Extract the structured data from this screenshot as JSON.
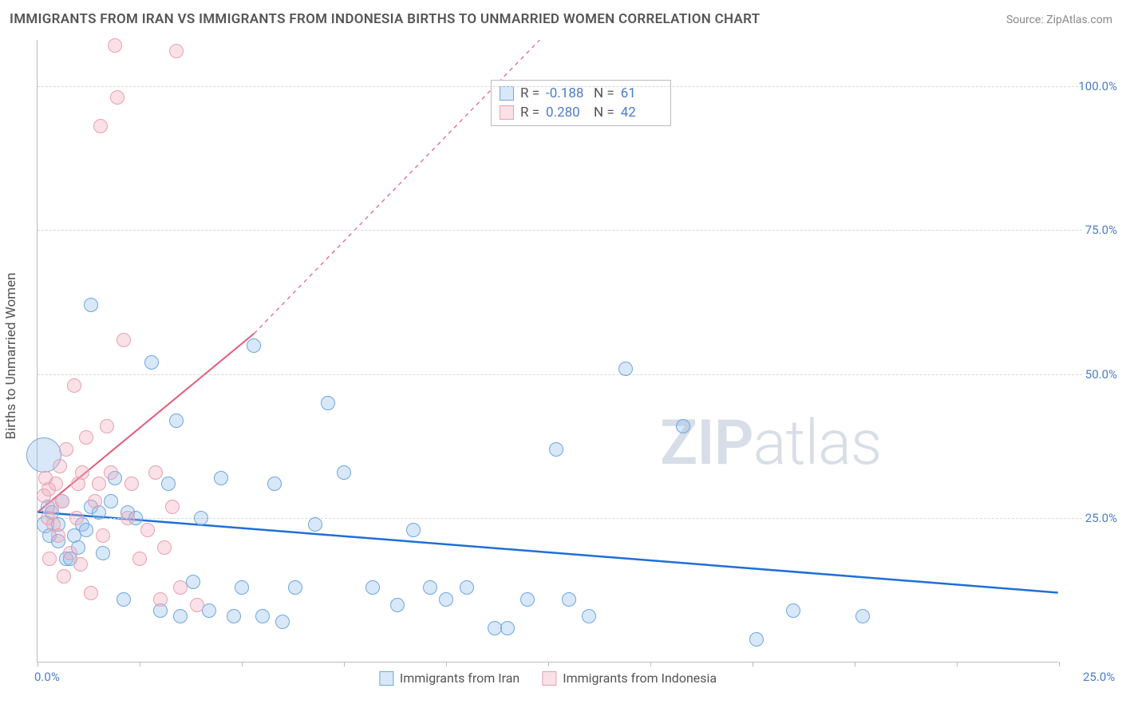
{
  "title": "IMMIGRANTS FROM IRAN VS IMMIGRANTS FROM INDONESIA BIRTHS TO UNMARRIED WOMEN CORRELATION CHART",
  "source_label": "Source: ZipAtlas.com",
  "y_axis_label": "Births to Unmarried Women",
  "watermark_a": "ZIP",
  "watermark_b": "atlas",
  "chart": {
    "type": "scatter",
    "xlim": [
      0,
      25
    ],
    "ylim": [
      0,
      108
    ],
    "x_ticks": [
      0,
      2.5,
      5,
      7.5,
      10,
      12.5,
      15,
      17.5,
      20,
      22.5,
      25
    ],
    "x_tick_labels": {
      "0": "0.0%",
      "25": "25.0%"
    },
    "y_ticks": [
      25,
      50,
      75,
      100
    ],
    "y_tick_labels": {
      "25": "25.0%",
      "50": "50.0%",
      "75": "75.0%",
      "100": "100.0%"
    },
    "background": "#ffffff",
    "grid_color": "#d8d8d8",
    "axis_color": "#bbbbbb",
    "tick_label_color": "#4a7ec9",
    "point_radius": 9,
    "series": [
      {
        "id": "iran",
        "label": "Immigrants from Iran",
        "stroke": "#6da6e0",
        "fill": "rgba(145,190,235,0.35)",
        "reg_line_color": "#1f6fd6",
        "reg_line_width": 2.5,
        "reg_from": [
          0,
          26
        ],
        "reg_to": [
          25,
          12
        ],
        "R": "-0.188",
        "N": "61",
        "points": [
          [
            0.15,
            36,
            22
          ],
          [
            0.2,
            24,
            11
          ],
          [
            0.25,
            27,
            9
          ],
          [
            0.3,
            22,
            9
          ],
          [
            0.35,
            26,
            9
          ],
          [
            0.5,
            21,
            9
          ],
          [
            0.5,
            24,
            9
          ],
          [
            0.6,
            28,
            9
          ],
          [
            0.7,
            18,
            9
          ],
          [
            0.8,
            18,
            9
          ],
          [
            0.9,
            22,
            9
          ],
          [
            1.0,
            20,
            9
          ],
          [
            1.1,
            24,
            9
          ],
          [
            1.2,
            23,
            9
          ],
          [
            1.3,
            62,
            9
          ],
          [
            1.3,
            27,
            9
          ],
          [
            1.5,
            26,
            9
          ],
          [
            1.6,
            19,
            9
          ],
          [
            1.8,
            28,
            9
          ],
          [
            1.9,
            32,
            9
          ],
          [
            2.1,
            11,
            9
          ],
          [
            2.2,
            26,
            9
          ],
          [
            2.4,
            25,
            9
          ],
          [
            2.8,
            52,
            9
          ],
          [
            3.0,
            9,
            9
          ],
          [
            3.2,
            31,
            9
          ],
          [
            3.4,
            42,
            9
          ],
          [
            3.5,
            8,
            9
          ],
          [
            3.8,
            14,
            9
          ],
          [
            4.0,
            25,
            9
          ],
          [
            4.2,
            9,
            9
          ],
          [
            4.5,
            32,
            9
          ],
          [
            4.8,
            8,
            9
          ],
          [
            5.0,
            13,
            9
          ],
          [
            5.3,
            55,
            9
          ],
          [
            5.5,
            8,
            9
          ],
          [
            5.8,
            31,
            9
          ],
          [
            6.0,
            7,
            9
          ],
          [
            6.3,
            13,
            9
          ],
          [
            6.8,
            24,
            9
          ],
          [
            7.1,
            45,
            9
          ],
          [
            7.5,
            33,
            9
          ],
          [
            8.2,
            13,
            9
          ],
          [
            8.8,
            10,
            9
          ],
          [
            9.2,
            23,
            9
          ],
          [
            9.6,
            13,
            9
          ],
          [
            10.0,
            11,
            9
          ],
          [
            10.5,
            13,
            9
          ],
          [
            11.2,
            6,
            9
          ],
          [
            11.5,
            6,
            9
          ],
          [
            12.0,
            11,
            9
          ],
          [
            12.7,
            37,
            9
          ],
          [
            13.0,
            11,
            9
          ],
          [
            13.5,
            8,
            9
          ],
          [
            14.4,
            51,
            9
          ],
          [
            15.8,
            41,
            9
          ],
          [
            17.6,
            4,
            9
          ],
          [
            18.5,
            9,
            9
          ],
          [
            20.2,
            8,
            9
          ]
        ]
      },
      {
        "id": "indonesia",
        "label": "Immigrants from Indonesia",
        "stroke": "#e8a0b0",
        "fill": "rgba(240,170,190,0.35)",
        "reg_line_color": "#e55a7a",
        "reg_line_width": 2,
        "reg_from": [
          0,
          26
        ],
        "reg_to": [
          5.3,
          57
        ],
        "reg_dash_from": [
          5.3,
          57
        ],
        "reg_dash_to": [
          12.3,
          108
        ],
        "R": "0.280",
        "N": "42",
        "points": [
          [
            0.15,
            29,
            9
          ],
          [
            0.2,
            32,
            9
          ],
          [
            0.25,
            25,
            9
          ],
          [
            0.28,
            30,
            9
          ],
          [
            0.3,
            18,
            9
          ],
          [
            0.35,
            27,
            9
          ],
          [
            0.4,
            24,
            9
          ],
          [
            0.45,
            31,
            9
          ],
          [
            0.5,
            22,
            9
          ],
          [
            0.55,
            34,
            9
          ],
          [
            0.6,
            28,
            9
          ],
          [
            0.65,
            15,
            9
          ],
          [
            0.7,
            37,
            9
          ],
          [
            0.8,
            19,
            9
          ],
          [
            0.9,
            48,
            9
          ],
          [
            0.95,
            25,
            9
          ],
          [
            1.0,
            31,
            9
          ],
          [
            1.05,
            17,
            9
          ],
          [
            1.1,
            33,
            9
          ],
          [
            1.2,
            39,
            9
          ],
          [
            1.3,
            12,
            9
          ],
          [
            1.4,
            28,
            9
          ],
          [
            1.5,
            31,
            9
          ],
          [
            1.55,
            93,
            9
          ],
          [
            1.6,
            22,
            9
          ],
          [
            1.7,
            41,
            9
          ],
          [
            1.8,
            33,
            9
          ],
          [
            1.9,
            107,
            9
          ],
          [
            1.95,
            98,
            9
          ],
          [
            2.1,
            56,
            9
          ],
          [
            2.2,
            25,
            9
          ],
          [
            2.3,
            31,
            9
          ],
          [
            2.5,
            18,
            9
          ],
          [
            2.7,
            23,
            9
          ],
          [
            2.9,
            33,
            9
          ],
          [
            3.0,
            11,
            9
          ],
          [
            3.1,
            20,
            9
          ],
          [
            3.3,
            27,
            9
          ],
          [
            3.4,
            106,
            9
          ],
          [
            3.5,
            13,
            9
          ],
          [
            3.9,
            10,
            9
          ]
        ]
      }
    ]
  },
  "bottom_legend": [
    {
      "swatch": "a",
      "label": "Immigrants from Iran"
    },
    {
      "swatch": "b",
      "label": "Immigrants from Indonesia"
    }
  ]
}
